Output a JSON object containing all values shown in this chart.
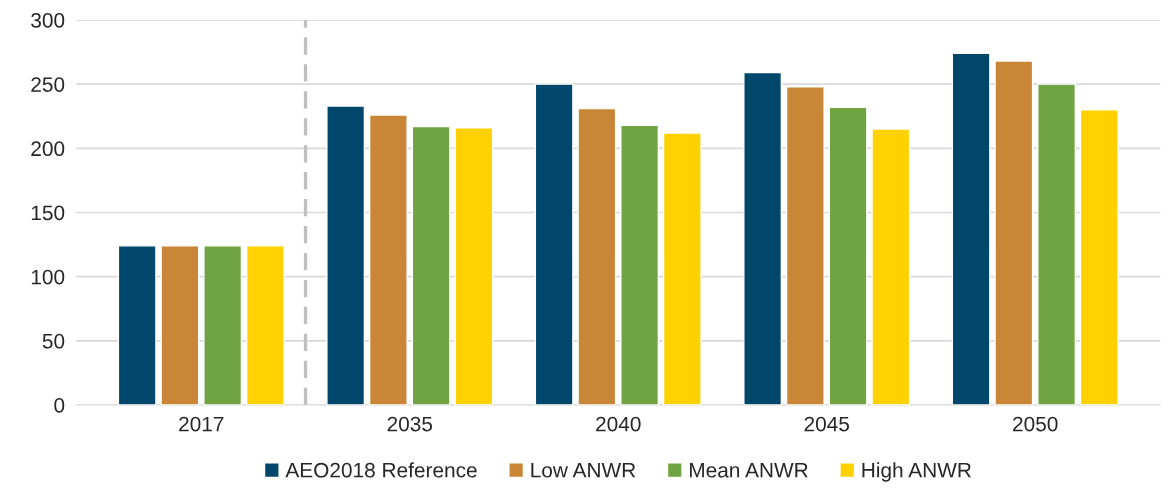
{
  "chart_data": {
    "type": "bar",
    "categories": [
      "2017",
      "2035",
      "2040",
      "2045",
      "2050"
    ],
    "series": [
      {
        "name": "AEO2018 Reference",
        "color": "#00476b",
        "values": [
          124,
          233,
          250,
          259,
          274
        ]
      },
      {
        "name": "Low ANWR",
        "color": "#c98637",
        "values": [
          124,
          226,
          231,
          248,
          268
        ]
      },
      {
        "name": "Mean ANWR",
        "color": "#70a442",
        "values": [
          124,
          217,
          218,
          232,
          250
        ]
      },
      {
        "name": "High ANWR",
        "color": "#ffd100",
        "values": [
          124,
          216,
          212,
          215,
          230
        ]
      }
    ],
    "ylim": [
      0,
      300
    ],
    "yticks": [
      0,
      50,
      100,
      150,
      200,
      250,
      300
    ],
    "grid": "y",
    "legend": "bottom"
  }
}
